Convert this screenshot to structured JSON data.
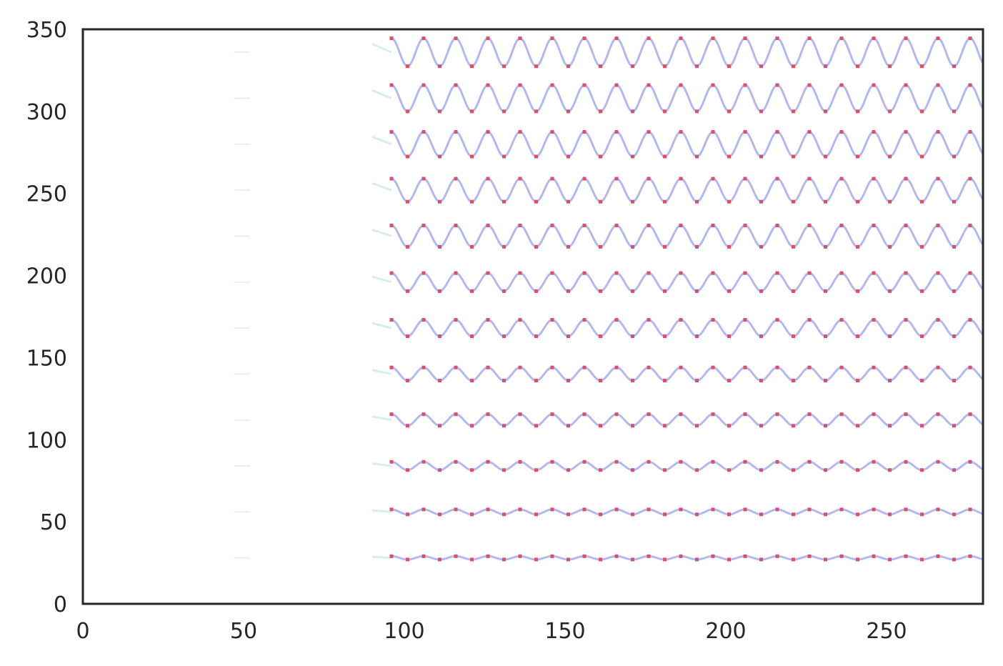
{
  "chart_data": {
    "type": "line",
    "title": "",
    "xlabel": "",
    "ylabel": "",
    "xlim": [
      0,
      280
    ],
    "ylim": [
      0,
      350
    ],
    "x_ticks": [
      {
        "value": 0,
        "label": "0"
      },
      {
        "value": 50,
        "label": "50"
      },
      {
        "value": 100,
        "label": "100"
      },
      {
        "value": 150,
        "label": "150"
      },
      {
        "value": 200,
        "label": "200"
      },
      {
        "value": 250,
        "label": "250"
      }
    ],
    "y_ticks": [
      {
        "value": 0,
        "label": "0"
      },
      {
        "value": 50,
        "label": "50"
      },
      {
        "value": 100,
        "label": "100"
      },
      {
        "value": 150,
        "label": "150"
      },
      {
        "value": 200,
        "label": "200"
      },
      {
        "value": 250,
        "label": "250"
      },
      {
        "value": 300,
        "label": "300"
      },
      {
        "value": 350,
        "label": "350"
      }
    ],
    "grid": false,
    "wave_period": 10,
    "x_start": 96,
    "x_end": 280,
    "series": [
      {
        "center": 28,
        "amplitude": 1.0
      },
      {
        "center": 56,
        "amplitude": 1.5
      },
      {
        "center": 84,
        "amplitude": 2.5
      },
      {
        "center": 112,
        "amplitude": 3.5
      },
      {
        "center": 140,
        "amplitude": 4.0
      },
      {
        "center": 168,
        "amplitude": 5.0
      },
      {
        "center": 196,
        "amplitude": 5.5
      },
      {
        "center": 224,
        "amplitude": 6.5
      },
      {
        "center": 252,
        "amplitude": 7.0
      },
      {
        "center": 280,
        "amplitude": 7.5
      },
      {
        "center": 308,
        "amplitude": 8.0
      },
      {
        "center": 336,
        "amplitude": 8.5
      }
    ],
    "colors": {
      "line": "#b4b8f0",
      "peak_marker": "#d9506e",
      "faint": "#cdebe8",
      "axis": "#262626"
    }
  }
}
